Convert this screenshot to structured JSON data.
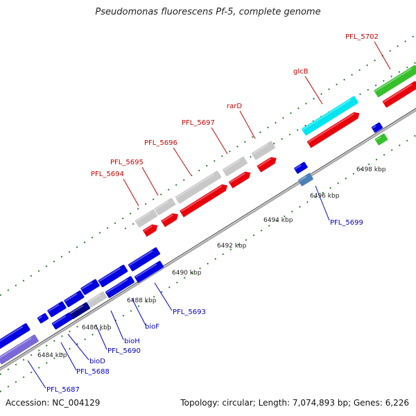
{
  "title": "Pseudomonas fluorescens Pf-5, complete genome",
  "footer": {
    "accession": "Accession: NC_004129",
    "summary": "Topology: circular; Length: 7,074,893 bp; Genes: 6,226"
  },
  "colors": {
    "backbone": "#999999",
    "tick": "#2e7d2e",
    "cds_forward_red": "#e8000b",
    "cds_blue": "#0000e0",
    "cds_gray": "#c8c8c8",
    "rna_cyan": "#00e5ee",
    "green": "#36c02b",
    "label_red": "#cc0000",
    "label_blue": "#0000cc",
    "scale_text": "#222222"
  },
  "scale_ticks": [
    {
      "label": "6484 kbp"
    },
    {
      "label": "6486 kbp"
    },
    {
      "label": "6488 kbp"
    },
    {
      "label": "6490 kbp"
    },
    {
      "label": "6492 kbp"
    },
    {
      "label": "6494 kbp"
    },
    {
      "label": "6496 kbp"
    },
    {
      "label": "6498 kbp"
    }
  ],
  "gene_labels_top": [
    {
      "text": "PFL_5694"
    },
    {
      "text": "PFL_5695"
    },
    {
      "text": "PFL_5696"
    },
    {
      "text": "PFL_5697"
    },
    {
      "text": "rarD"
    },
    {
      "text": "glcB"
    },
    {
      "text": "PFL_5702"
    }
  ],
  "gene_labels_bottom": [
    {
      "text": "PFL_5687"
    },
    {
      "text": "PFL_5688"
    },
    {
      "text": "bioD"
    },
    {
      "text": "PFL_5690"
    },
    {
      "text": "bioH"
    },
    {
      "text": "bioF"
    },
    {
      "text": "PFL_5693"
    },
    {
      "text": "PFL_5699"
    }
  ]
}
